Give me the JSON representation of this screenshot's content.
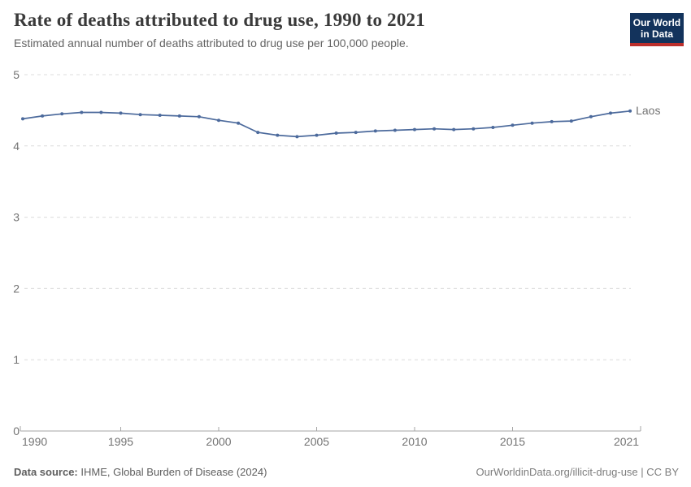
{
  "header": {
    "logo": {
      "line1": "Our World",
      "line2": "in Data"
    }
  },
  "footer": {
    "source_label": "Data source:",
    "source_value": " IHME, Global Burden of Disease (2024)",
    "link": "OurWorldinData.org/illicit-drug-use | CC BY"
  },
  "colors": {
    "line": "#4c6a9c",
    "grid": "#dcdcdc",
    "axis": "#a5a5a5",
    "tick_text": "#737373",
    "logo_navy": "#13335c",
    "logo_red": "#bc2f2c"
  },
  "chart_data": {
    "type": "line",
    "title": "Rate of deaths attributed to drug use, 1990 to 2021",
    "subtitle": "Estimated annual number of deaths attributed to drug use per 100,000 people.",
    "x": [
      1990,
      1991,
      1992,
      1993,
      1994,
      1995,
      1996,
      1997,
      1998,
      1999,
      2000,
      2001,
      2002,
      2003,
      2004,
      2005,
      2006,
      2007,
      2008,
      2009,
      2010,
      2011,
      2012,
      2013,
      2014,
      2015,
      2016,
      2017,
      2018,
      2019,
      2020,
      2021
    ],
    "series": [
      {
        "name": "Laos",
        "color": "#4c6a9c",
        "values": [
          4.38,
          4.42,
          4.45,
          4.47,
          4.47,
          4.46,
          4.44,
          4.43,
          4.42,
          4.41,
          4.36,
          4.32,
          4.19,
          4.15,
          4.13,
          4.15,
          4.18,
          4.19,
          4.21,
          4.22,
          4.23,
          4.24,
          4.23,
          4.24,
          4.26,
          4.29,
          4.32,
          4.34,
          4.35,
          4.41,
          4.46,
          4.49
        ]
      }
    ],
    "ylim": [
      0,
      5
    ],
    "yticks": [
      0,
      1,
      2,
      3,
      4,
      5
    ],
    "xtick_labels": [
      "1990",
      "1995",
      "2000",
      "2005",
      "2010",
      "2015",
      "2021"
    ],
    "xlabel": "",
    "ylabel": "",
    "grid": true,
    "legend_position": "end-of-line"
  }
}
